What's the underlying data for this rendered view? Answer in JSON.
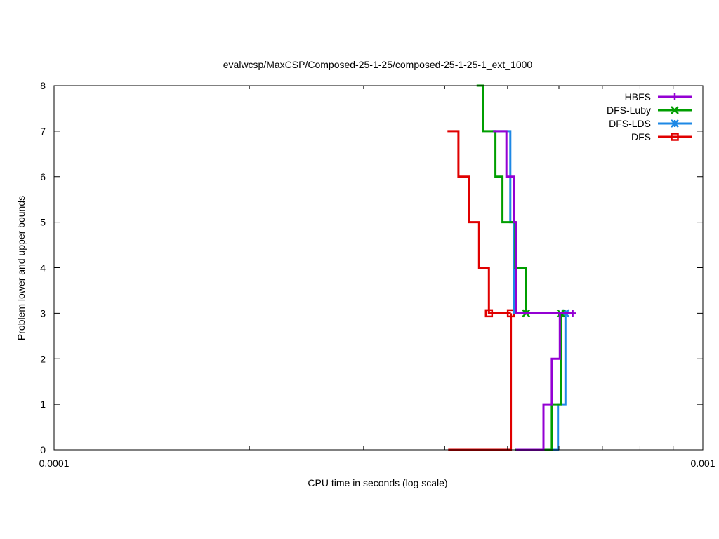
{
  "chart_data": {
    "type": "line",
    "title": "evalwcsp/MaxCSP/Composed-25-1-25/composed-25-1-25-1_ext_1000",
    "xlabel": "CPU time in seconds (log scale)",
    "ylabel": "Problem lower and upper bounds",
    "x_scale": "log",
    "xlim": [
      0.0001,
      0.001
    ],
    "ylim": [
      0,
      8
    ],
    "x_ticks": [
      {
        "value": 0.0001,
        "label": "0.0001"
      },
      {
        "value": 0.001,
        "label": "0.001"
      }
    ],
    "x_minor_ticks": [
      0.0002,
      0.0003,
      0.0004,
      0.0005,
      0.0006,
      0.0007,
      0.0008,
      0.0009
    ],
    "y_ticks": [
      {
        "value": 0,
        "label": "0"
      },
      {
        "value": 1,
        "label": "1"
      },
      {
        "value": 2,
        "label": "2"
      },
      {
        "value": 3,
        "label": "3"
      },
      {
        "value": 4,
        "label": "4"
      },
      {
        "value": 5,
        "label": "5"
      },
      {
        "value": 6,
        "label": "6"
      },
      {
        "value": 7,
        "label": "7"
      },
      {
        "value": 8,
        "label": "8"
      }
    ],
    "grid": false,
    "legend_position": "top-right",
    "series": [
      {
        "name": "HBFS",
        "color": "#9400d3",
        "marker": "plus",
        "upper": [
          [
            0.000475,
            7
          ],
          [
            0.000498,
            6
          ],
          [
            0.000511,
            5
          ],
          [
            0.000515,
            3
          ],
          [
            0.00063,
            3
          ]
        ],
        "lower": [
          [
            0.000515,
            0
          ],
          [
            0.000568,
            1
          ],
          [
            0.000585,
            2
          ],
          [
            0.000602,
            3
          ]
        ],
        "markers": [
          [
            0.00063,
            3
          ]
        ]
      },
      {
        "name": "DFS-Luby",
        "color": "#009e00",
        "marker": "x",
        "upper": [
          [
            0.000448,
            8
          ],
          [
            0.000458,
            7
          ],
          [
            0.000479,
            6
          ],
          [
            0.000491,
            5
          ],
          [
            0.000514,
            4
          ],
          [
            0.000534,
            3
          ],
          [
            0.000604,
            3
          ]
        ],
        "lower": [
          [
            0.000513,
            0
          ],
          [
            0.000585,
            1
          ],
          [
            0.000604,
            3
          ]
        ],
        "markers": [
          [
            0.000534,
            3
          ],
          [
            0.000604,
            3
          ]
        ]
      },
      {
        "name": "DFS-LDS",
        "color": "#1e88e5",
        "marker": "asterisk",
        "upper": [
          [
            0.000474,
            7
          ],
          [
            0.000505,
            5
          ],
          [
            0.000511,
            3
          ],
          [
            0.000614,
            3
          ]
        ],
        "lower": [
          [
            0.000513,
            0
          ],
          [
            0.000598,
            1
          ],
          [
            0.000614,
            3
          ]
        ],
        "markers": [
          [
            0.000614,
            3
          ]
        ]
      },
      {
        "name": "DFS",
        "color": "#e00000",
        "marker": "square",
        "upper": [
          [
            0.000404,
            7
          ],
          [
            0.00042,
            6
          ],
          [
            0.000436,
            5
          ],
          [
            0.000452,
            4
          ],
          [
            0.000468,
            3
          ],
          [
            0.000506,
            3
          ]
        ],
        "lower": [
          [
            0.000405,
            0
          ],
          [
            0.000486,
            0
          ],
          [
            0.000506,
            1
          ],
          [
            0.000506,
            3
          ]
        ],
        "markers": [
          [
            0.000468,
            3
          ],
          [
            0.000506,
            3
          ]
        ]
      }
    ]
  }
}
